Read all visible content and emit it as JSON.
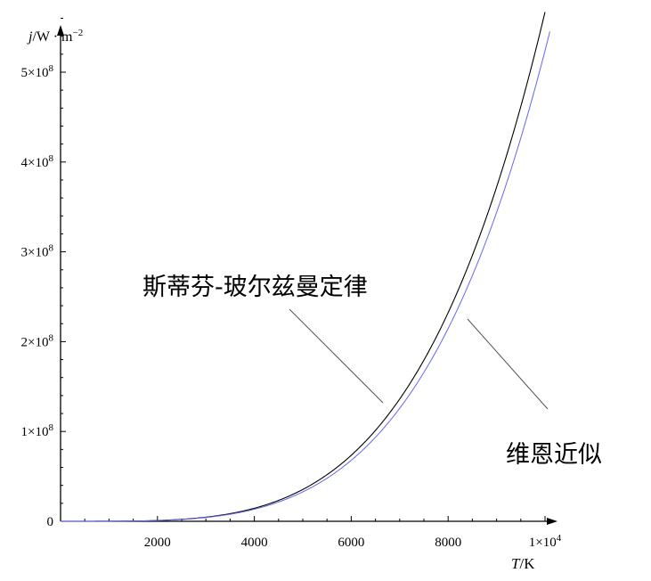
{
  "chart_data": {
    "type": "line",
    "x_axis": {
      "label_var": "T",
      "label_unit": "K",
      "ticks": [
        2000,
        4000,
        6000,
        8000
      ],
      "tick_labels": [
        "2000",
        "4000",
        "6000",
        "8000"
      ],
      "end_tick": 10000,
      "end_tick_label": "1×10⁴",
      "range": [
        0,
        10000
      ]
    },
    "y_axis": {
      "label_var": "j",
      "label_unit": "W · m⁻²",
      "ticks": [
        0,
        100000000,
        200000000,
        300000000,
        400000000,
        500000000
      ],
      "tick_labels": [
        "0",
        "1×10⁸",
        "2×10⁸",
        "3×10⁸",
        "4×10⁸",
        "5×10⁸"
      ],
      "range": [
        0,
        570000000
      ]
    },
    "series": [
      {
        "name": "斯蒂芬-玻尔兹曼定律",
        "color": "#000000",
        "x": [
          0,
          1000,
          2000,
          3000,
          4000,
          5000,
          6000,
          7000,
          8000,
          9000,
          10000
        ],
        "y": [
          0,
          56700,
          907000,
          4590000,
          14500000,
          35400000,
          73500000,
          136000000,
          232000000,
          372000000,
          567000000
        ]
      },
      {
        "name": "维恩近似",
        "color": "#6666ee",
        "x": [
          0,
          1000,
          2000,
          3000,
          4000,
          5000,
          6000,
          7000,
          8000,
          9000,
          10000
        ],
        "y": [
          0,
          52400,
          838000,
          4240000,
          13400000,
          32700000,
          67900000,
          126000000,
          215000000,
          344000000,
          524000000
        ]
      }
    ],
    "annotations": [
      {
        "text": "斯蒂芬-玻尔兹曼定律",
        "series": 0
      },
      {
        "text": "维恩近似",
        "series": 1
      }
    ],
    "grid": false
  }
}
